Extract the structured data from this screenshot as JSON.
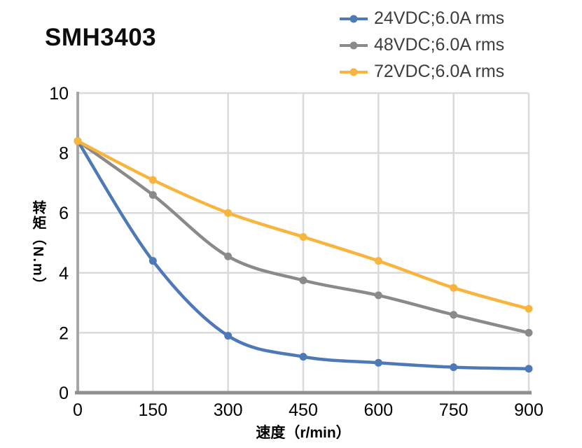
{
  "title": "SMH3403",
  "legend": {
    "items": [
      {
        "label": "24VDC;6.0A rms",
        "color": "#4E79B7"
      },
      {
        "label": "48VDC;6.0A rms",
        "color": "#8A8A8A"
      },
      {
        "label": "72VDC;6.0A rms",
        "color": "#F8B43C"
      }
    ]
  },
  "chart_data": {
    "type": "line",
    "title": "SMH3403",
    "x": [
      0,
      150,
      300,
      450,
      600,
      750,
      900
    ],
    "series": [
      {
        "name": "24VDC;6.0A rms",
        "color": "#4E79B7",
        "values": [
          8.4,
          4.4,
          1.9,
          1.2,
          1.0,
          0.85,
          0.8
        ]
      },
      {
        "name": "48VDC;6.0A rms",
        "color": "#8A8A8A",
        "values": [
          8.4,
          6.6,
          4.55,
          3.75,
          3.25,
          2.6,
          2.0
        ]
      },
      {
        "name": "72VDC;6.0A rms",
        "color": "#F8B43C",
        "values": [
          8.4,
          7.1,
          6.0,
          5.2,
          4.4,
          3.5,
          2.8
        ]
      }
    ],
    "xlabel": "速度（r/min）",
    "ylabel": "转矩（N.m）",
    "xlim": [
      0,
      900
    ],
    "ylim": [
      0,
      10
    ],
    "x_ticks": [
      0,
      150,
      300,
      450,
      600,
      750,
      900
    ],
    "y_ticks": [
      0,
      2,
      4,
      6,
      8,
      10
    ],
    "grid": true,
    "legend_position": "top-right"
  },
  "style": {
    "grid_color": "#DADADA",
    "left_axis_color": "#A6A6A6",
    "bottom_axis_color": "#8F8F8F",
    "tick_text_color": "#000000"
  }
}
